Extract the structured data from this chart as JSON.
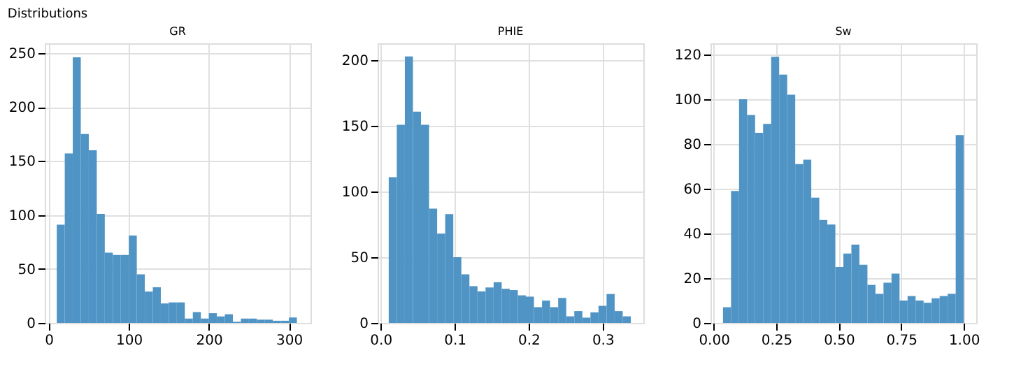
{
  "chart_data": [
    {
      "type": "histogram",
      "title": "GR",
      "color": "#4f94c4",
      "grid": true,
      "annotations": [
        "Distributions"
      ],
      "bins": [
        10,
        20,
        30,
        40,
        50,
        60,
        70,
        80,
        90,
        100,
        110,
        120,
        130,
        140,
        150,
        160,
        170,
        180,
        190,
        200,
        210,
        220,
        230,
        240,
        250,
        260,
        270,
        280,
        290,
        300,
        310
      ],
      "values": [
        91,
        157,
        246,
        175,
        160,
        101,
        65,
        63,
        63,
        81,
        45,
        29,
        33,
        18,
        19,
        19,
        4,
        10,
        4,
        9,
        6,
        8,
        1,
        4,
        4,
        3,
        3,
        2,
        2,
        5
      ],
      "xlim": [
        -5,
        327
      ],
      "xticks": [
        0,
        100,
        200,
        300
      ],
      "ylim": [
        0,
        259
      ],
      "yticks": [
        0,
        50,
        100,
        150,
        200,
        250
      ]
    },
    {
      "type": "histogram",
      "title": "PHIE",
      "color": "#4f94c4",
      "grid": true,
      "bins": [
        0.011,
        0.0219,
        0.0328,
        0.0437,
        0.0546,
        0.0655,
        0.0764,
        0.0873,
        0.0982,
        0.1091,
        0.12,
        0.1309,
        0.1418,
        0.1527,
        0.1636,
        0.1745,
        0.1854,
        0.1963,
        0.2072,
        0.2181,
        0.229,
        0.2399,
        0.2508,
        0.2617,
        0.2726,
        0.2835,
        0.2944,
        0.3053,
        0.3162,
        0.3271,
        0.338
      ],
      "values": [
        111,
        151,
        203,
        161,
        151,
        87,
        68,
        83,
        50,
        37,
        28,
        24,
        27,
        31,
        26,
        25,
        21,
        20,
        12,
        17,
        12,
        19,
        5,
        9,
        4,
        8,
        13,
        22,
        9,
        5
      ],
      "xlim": [
        -0.004,
        0.355
      ],
      "xticks": [
        {
          "value": 0,
          "label": "0.0"
        },
        0.1,
        0.2,
        0.3
      ],
      "ylim": [
        0,
        213
      ],
      "yticks": [
        0,
        50,
        100,
        150,
        200
      ]
    },
    {
      "type": "histogram",
      "title": "Sw",
      "color": "#4f94c4",
      "grid": true,
      "bins": [
        0.037,
        0.0691,
        0.1012,
        0.1333,
        0.1654,
        0.1975,
        0.2296,
        0.2617,
        0.2938,
        0.3259,
        0.358,
        0.3901,
        0.4222,
        0.4543,
        0.4864,
        0.5185,
        0.5506,
        0.5827,
        0.6148,
        0.6469,
        0.679,
        0.7111,
        0.7432,
        0.7753,
        0.8074,
        0.8395,
        0.8716,
        0.9037,
        0.9358,
        0.9679,
        1.0
      ],
      "values": [
        7,
        59,
        100,
        93,
        85,
        89,
        119,
        111,
        102,
        71,
        73,
        56,
        46,
        44,
        25,
        31,
        35,
        26,
        17,
        13,
        18,
        22,
        10,
        12,
        10,
        9,
        11,
        12,
        13,
        84
      ],
      "xlim": [
        -0.013,
        1.05
      ],
      "xticks": [
        {
          "value": 0,
          "label": "0.00"
        },
        {
          "value": 0.25,
          "label": "0.25"
        },
        {
          "value": 0.5,
          "label": "0.50"
        },
        {
          "value": 0.75,
          "label": "0.75"
        },
        {
          "value": 1,
          "label": "1.00"
        }
      ],
      "ylim": [
        0,
        125
      ],
      "yticks": [
        0,
        20,
        40,
        60,
        80,
        100,
        120
      ]
    }
  ]
}
